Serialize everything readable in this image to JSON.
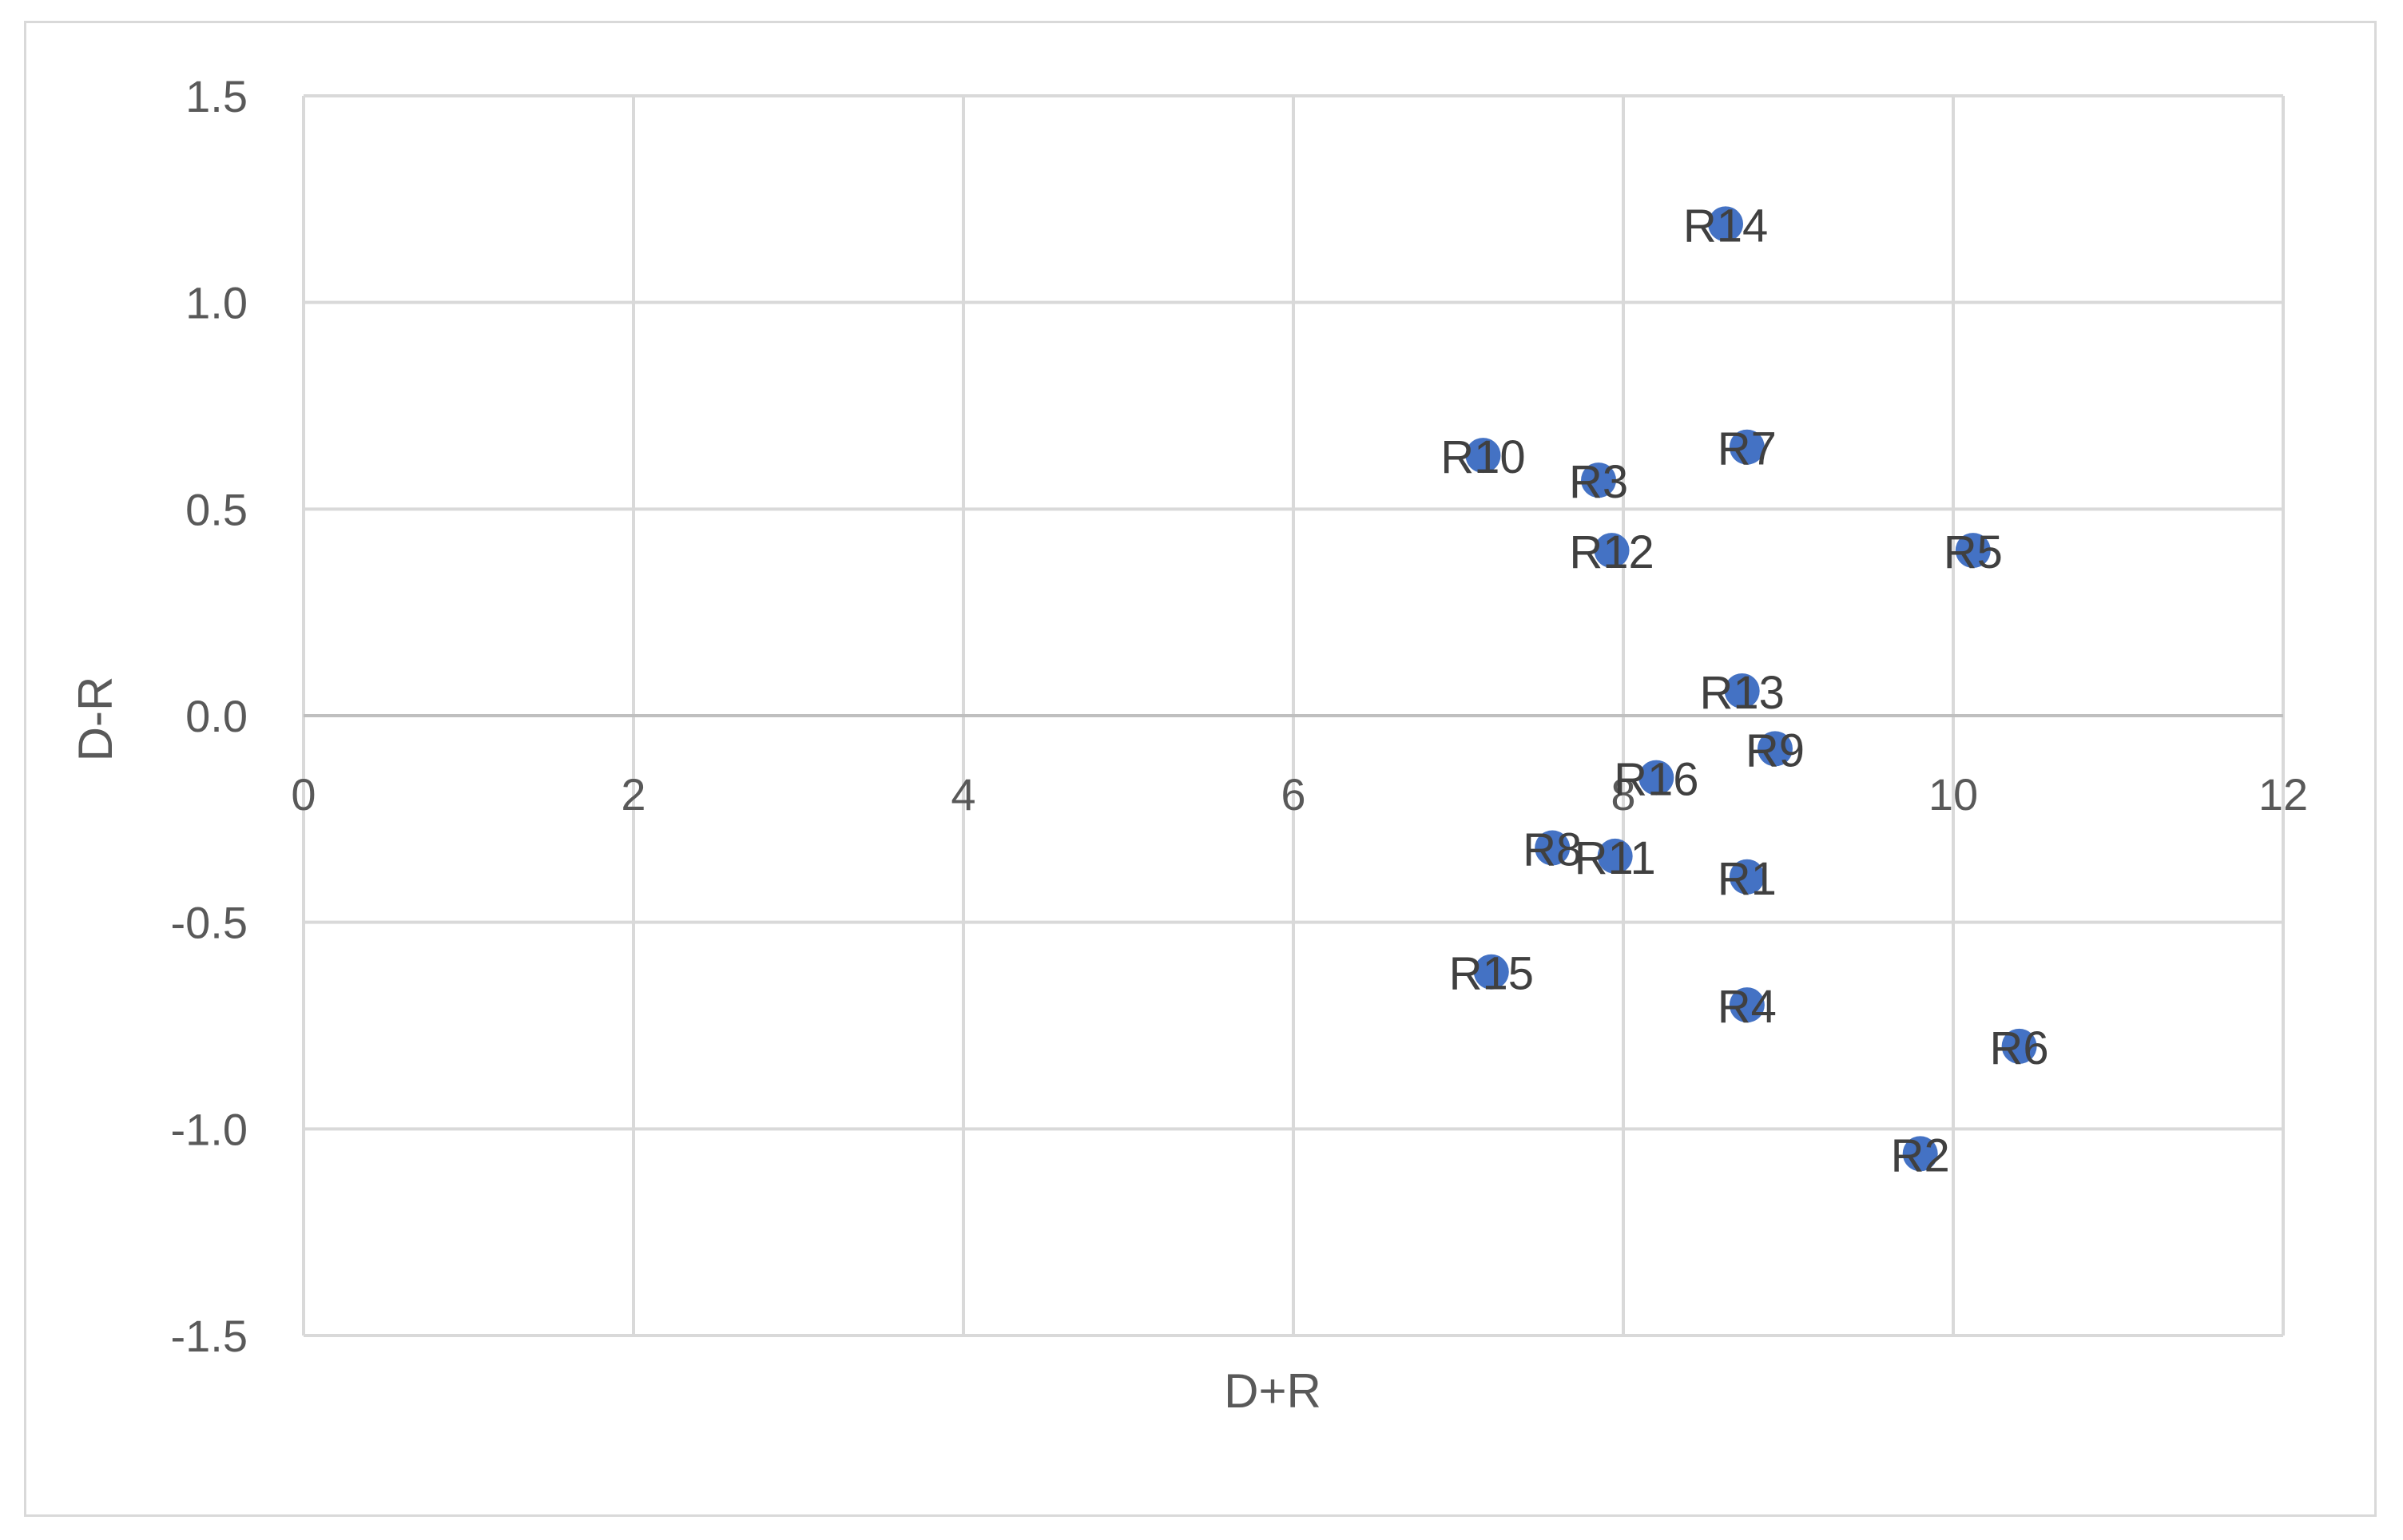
{
  "chart_data": {
    "type": "scatter",
    "title": "",
    "xlabel": "D+R",
    "ylabel": "D-R",
    "xlim": [
      0,
      12
    ],
    "ylim": [
      -1.5,
      1.5
    ],
    "x_ticks": [
      "0",
      "2",
      "4",
      "6",
      "8",
      "10",
      "12"
    ],
    "y_ticks": [
      "1.5",
      "1.0",
      "0.5",
      "0.0",
      "-0.5",
      "-1.0",
      "-1.5"
    ],
    "grid": true,
    "marker_color": "#4472c4",
    "points": [
      {
        "label": "R1",
        "x": 8.75,
        "y": -0.39
      },
      {
        "label": "R2",
        "x": 9.8,
        "y": -1.06
      },
      {
        "label": "R3",
        "x": 7.85,
        "y": 0.57
      },
      {
        "label": "R4",
        "x": 8.75,
        "y": -0.7
      },
      {
        "label": "R5",
        "x": 10.12,
        "y": 0.4
      },
      {
        "label": "R6",
        "x": 10.4,
        "y": -0.8
      },
      {
        "label": "R7",
        "x": 8.75,
        "y": 0.65
      },
      {
        "label": "R8",
        "x": 7.57,
        "y": -0.32
      },
      {
        "label": "R9",
        "x": 8.92,
        "y": -0.08
      },
      {
        "label": "R10",
        "x": 7.15,
        "y": 0.63
      },
      {
        "label": "R11",
        "x": 7.95,
        "y": -0.34
      },
      {
        "label": "R12",
        "x": 7.93,
        "y": 0.4
      },
      {
        "label": "R13",
        "x": 8.72,
        "y": 0.06
      },
      {
        "label": "R14",
        "x": 8.62,
        "y": 1.19
      },
      {
        "label": "R15",
        "x": 7.2,
        "y": -0.62
      },
      {
        "label": "R16",
        "x": 8.2,
        "y": -0.15
      }
    ]
  }
}
